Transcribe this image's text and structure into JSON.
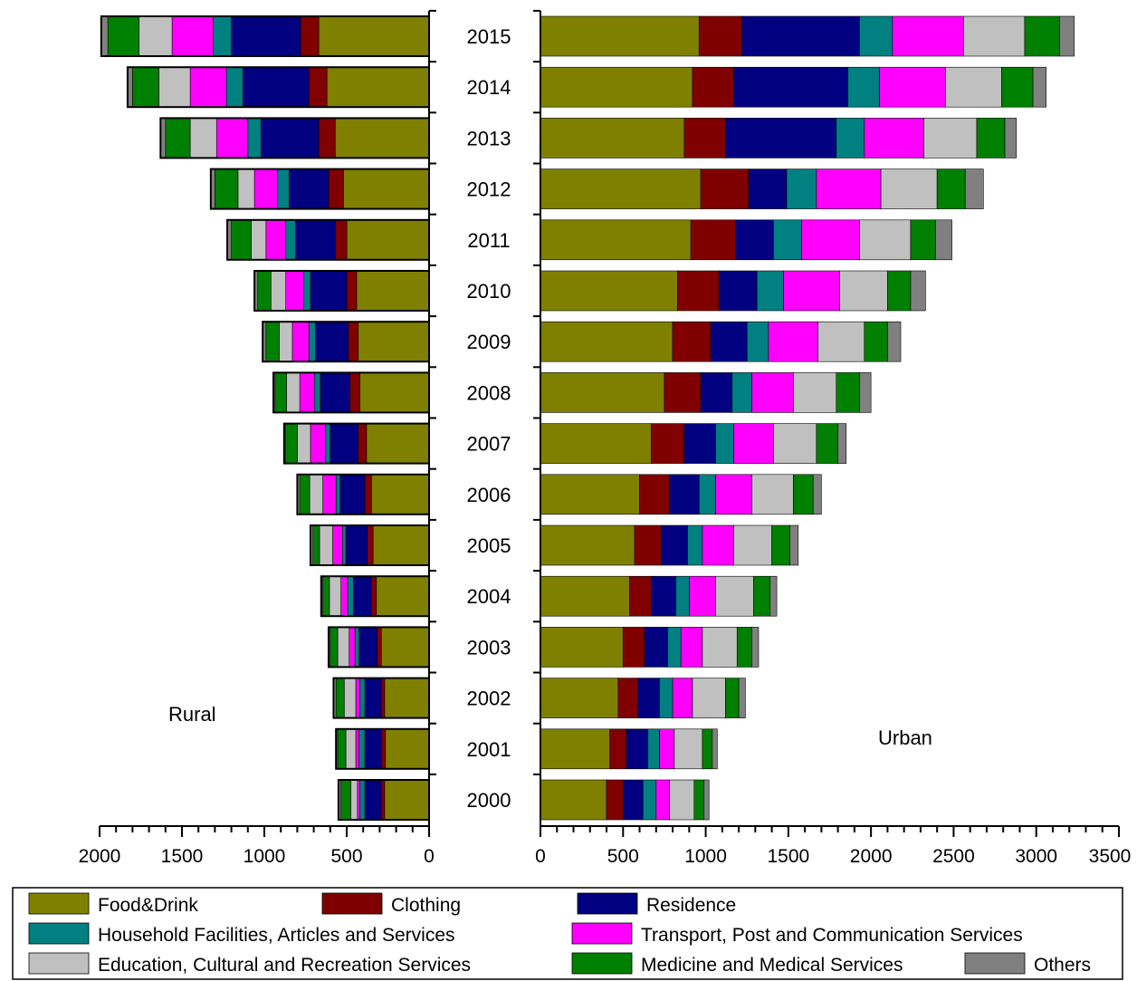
{
  "chart_data": {
    "type": "bar",
    "orientation": "horizontal",
    "stacked": true,
    "categories": [
      "2000",
      "2001",
      "2002",
      "2003",
      "2004",
      "2005",
      "2006",
      "2007",
      "2008",
      "2009",
      "2010",
      "2011",
      "2012",
      "2013",
      "2014",
      "2015"
    ],
    "series": [
      {
        "name": "Food&Drink",
        "color": "#808000"
      },
      {
        "name": "Clothing",
        "color": "#800000"
      },
      {
        "name": "Residence",
        "color": "#000080"
      },
      {
        "name": "Household Facilities, Articles and Services",
        "color": "#008080"
      },
      {
        "name": "Transport, Post and Communication Services",
        "color": "#ff00ff"
      },
      {
        "name": "Education, Cultural and Recreation Services",
        "color": "#c0c0c0"
      },
      {
        "name": "Medicine and Medical Services",
        "color": "#008000"
      },
      {
        "name": "Others",
        "color": "#808080"
      }
    ],
    "panels": [
      {
        "label": "Rural",
        "direction": "reversed",
        "xlim": [
          0,
          2000
        ],
        "xticks": [
          2000,
          1500,
          1000,
          500,
          0
        ],
        "data": [
          [
            270,
            20,
            100,
            30,
            15,
            40,
            60,
            15
          ],
          [
            265,
            25,
            100,
            35,
            20,
            60,
            50,
            10
          ],
          [
            270,
            20,
            100,
            30,
            25,
            70,
            50,
            15
          ],
          [
            290,
            25,
            110,
            25,
            35,
            70,
            45,
            10
          ],
          [
            320,
            30,
            110,
            35,
            40,
            70,
            40,
            10
          ],
          [
            340,
            35,
            130,
            20,
            60,
            80,
            40,
            15
          ],
          [
            350,
            40,
            150,
            25,
            80,
            80,
            60,
            15
          ],
          [
            380,
            50,
            170,
            30,
            90,
            80,
            70,
            10
          ],
          [
            420,
            60,
            180,
            35,
            90,
            80,
            70,
            10
          ],
          [
            430,
            60,
            200,
            40,
            100,
            80,
            80,
            20
          ],
          [
            440,
            60,
            220,
            40,
            110,
            90,
            80,
            20
          ],
          [
            500,
            70,
            240,
            60,
            120,
            90,
            120,
            25
          ],
          [
            520,
            90,
            240,
            70,
            140,
            100,
            140,
            25
          ],
          [
            570,
            100,
            350,
            80,
            190,
            160,
            150,
            30
          ],
          [
            620,
            110,
            400,
            100,
            220,
            190,
            160,
            30
          ],
          [
            670,
            110,
            420,
            110,
            250,
            200,
            190,
            40
          ]
        ]
      },
      {
        "label": "Urban",
        "direction": "normal",
        "xlim": [
          0,
          3500
        ],
        "xticks": [
          0,
          500,
          1000,
          1500,
          2000,
          2500,
          3000,
          3500
        ],
        "data": [
          [
            400,
            100,
            120,
            80,
            80,
            150,
            60,
            30
          ],
          [
            420,
            100,
            130,
            70,
            90,
            170,
            60,
            30
          ],
          [
            470,
            120,
            130,
            80,
            120,
            200,
            80,
            40
          ],
          [
            500,
            130,
            140,
            80,
            130,
            210,
            90,
            40
          ],
          [
            540,
            130,
            150,
            80,
            160,
            230,
            100,
            40
          ],
          [
            570,
            160,
            160,
            90,
            190,
            230,
            110,
            50
          ],
          [
            600,
            180,
            180,
            100,
            220,
            250,
            120,
            50
          ],
          [
            670,
            200,
            190,
            110,
            240,
            260,
            130,
            50
          ],
          [
            750,
            220,
            190,
            120,
            250,
            260,
            140,
            70
          ],
          [
            800,
            230,
            220,
            130,
            300,
            280,
            140,
            80
          ],
          [
            830,
            250,
            230,
            160,
            340,
            290,
            140,
            90
          ],
          [
            910,
            270,
            230,
            170,
            350,
            310,
            150,
            100
          ],
          [
            970,
            290,
            230,
            180,
            390,
            340,
            170,
            110
          ],
          [
            870,
            250,
            670,
            170,
            360,
            320,
            170,
            70
          ],
          [
            920,
            250,
            690,
            190,
            400,
            340,
            190,
            80
          ],
          [
            960,
            260,
            710,
            200,
            430,
            370,
            210,
            90
          ]
        ]
      }
    ],
    "legend": "bottom",
    "grid": false
  }
}
